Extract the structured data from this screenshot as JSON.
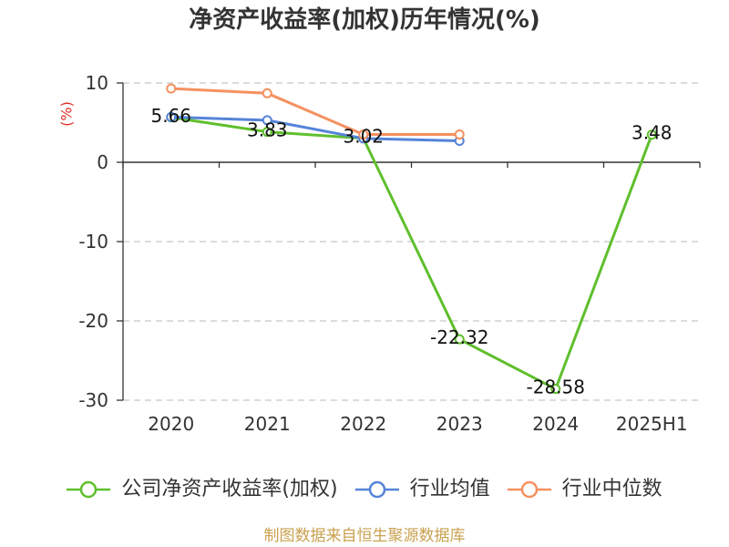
{
  "chart_data": {
    "type": "line",
    "title": "净资产收益率(加权)历年情况(%)",
    "ylabel": "(%)",
    "categories": [
      "2020",
      "2021",
      "2022",
      "2023",
      "2024",
      "2025H1"
    ],
    "ylim": [
      -30,
      10
    ],
    "yticks": [
      10,
      0,
      -10,
      -20,
      -30
    ],
    "grid": true,
    "legend_position": "bottom",
    "series": [
      {
        "name": "公司净资产收益率(加权)",
        "color": "#5fbf2d",
        "values": [
          5.66,
          3.83,
          3.02,
          -22.32,
          -28.58,
          3.48
        ],
        "data_labels": true
      },
      {
        "name": "行业均值",
        "color": "#5584d8",
        "values": [
          5.7,
          5.3,
          3.0,
          2.7,
          null,
          null
        ],
        "data_labels": false
      },
      {
        "name": "行业中位数",
        "color": "#f59160",
        "values": [
          9.3,
          8.7,
          3.5,
          3.5,
          null,
          null
        ],
        "data_labels": false
      }
    ]
  },
  "footer": {
    "source_note": "制图数据来自恒生聚源数据库"
  },
  "colors": {
    "title": "#333333",
    "y_axis_label": "#e0312b",
    "source_note": "#c9a14f",
    "axis": "#333333",
    "gridline": "#c8c8c8"
  }
}
